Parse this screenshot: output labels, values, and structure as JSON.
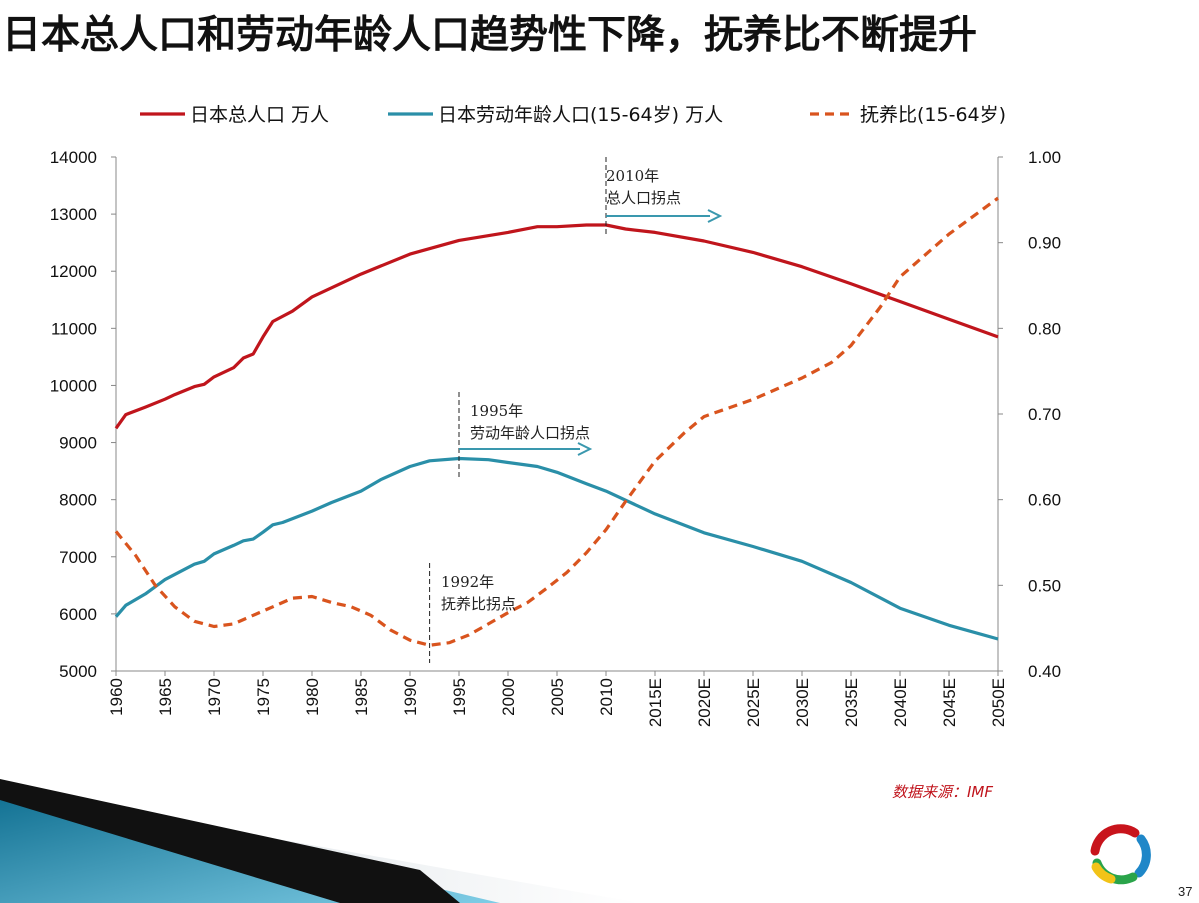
{
  "slide": {
    "title": "日本总人口和劳动年龄人口趋势性下降，抚养比不断提升",
    "source": "数据来源：IMF",
    "page_number": "37"
  },
  "colors": {
    "total_population": "#c0151c",
    "labor_population": "#2a8fa8",
    "dependency_ratio": "#d9541e",
    "arrow": "#3a98ae"
  },
  "chart_data": {
    "type": "line",
    "x_tick_labels": [
      "1960",
      "1965",
      "1970",
      "1975",
      "1980",
      "1985",
      "1990",
      "1995",
      "2000",
      "2005",
      "2010",
      "2015E",
      "2020E",
      "2025E",
      "2030E",
      "2035E",
      "2040E",
      "2045E",
      "2050E"
    ],
    "xlim": [
      1960,
      2050
    ],
    "y_left": {
      "lim": [
        5000,
        14000
      ],
      "ticks": [
        "14000",
        "13000",
        "12000",
        "11000",
        "10000",
        "9000",
        "8000",
        "7000",
        "6000",
        "5000"
      ]
    },
    "y_right": {
      "lim": [
        0.4,
        1.0
      ],
      "ticks": [
        "1.00",
        "0.90",
        "0.80",
        "0.70",
        "0.60",
        "0.50",
        "0.40"
      ]
    },
    "legend": [
      "日本总人口 万人",
      "日本劳动年龄人口(15-64岁) 万人",
      "抚养比(15-64岁)"
    ],
    "series": [
      {
        "name": "日本总人口 万人",
        "axis": "left",
        "style": "solid",
        "points": [
          [
            1960,
            9250
          ],
          [
            1961,
            9490
          ],
          [
            1963,
            9620
          ],
          [
            1965,
            9760
          ],
          [
            1966,
            9840
          ],
          [
            1968,
            9980
          ],
          [
            1969,
            10020
          ],
          [
            1970,
            10150
          ],
          [
            1972,
            10310
          ],
          [
            1973,
            10480
          ],
          [
            1974,
            10550
          ],
          [
            1975,
            10850
          ],
          [
            1976,
            11120
          ],
          [
            1978,
            11300
          ],
          [
            1980,
            11550
          ],
          [
            1985,
            11950
          ],
          [
            1990,
            12300
          ],
          [
            1995,
            12540
          ],
          [
            2000,
            12680
          ],
          [
            2003,
            12780
          ],
          [
            2005,
            12780
          ],
          [
            2008,
            12810
          ],
          [
            2010,
            12810
          ],
          [
            2012,
            12740
          ],
          [
            2015,
            12680
          ],
          [
            2020,
            12530
          ],
          [
            2025,
            12330
          ],
          [
            2030,
            12080
          ],
          [
            2035,
            11780
          ],
          [
            2040,
            11470
          ],
          [
            2045,
            11160
          ],
          [
            2050,
            10850
          ]
        ]
      },
      {
        "name": "日本劳动年龄人口(15-64岁) 万人",
        "axis": "left",
        "style": "solid",
        "points": [
          [
            1960,
            5950
          ],
          [
            1961,
            6150
          ],
          [
            1963,
            6350
          ],
          [
            1965,
            6600
          ],
          [
            1967,
            6780
          ],
          [
            1968,
            6870
          ],
          [
            1969,
            6920
          ],
          [
            1970,
            7050
          ],
          [
            1972,
            7200
          ],
          [
            1973,
            7280
          ],
          [
            1974,
            7310
          ],
          [
            1975,
            7430
          ],
          [
            1976,
            7560
          ],
          [
            1977,
            7600
          ],
          [
            1980,
            7800
          ],
          [
            1982,
            7950
          ],
          [
            1985,
            8150
          ],
          [
            1987,
            8350
          ],
          [
            1990,
            8580
          ],
          [
            1992,
            8680
          ],
          [
            1995,
            8720
          ],
          [
            1998,
            8700
          ],
          [
            2000,
            8650
          ],
          [
            2003,
            8580
          ],
          [
            2005,
            8480
          ],
          [
            2008,
            8280
          ],
          [
            2010,
            8150
          ],
          [
            2015,
            7750
          ],
          [
            2020,
            7420
          ],
          [
            2025,
            7180
          ],
          [
            2030,
            6920
          ],
          [
            2035,
            6550
          ],
          [
            2040,
            6100
          ],
          [
            2045,
            5800
          ],
          [
            2050,
            5560
          ]
        ]
      },
      {
        "name": "抚养比(15-64岁)",
        "axis": "right",
        "style": "dashed",
        "points": [
          [
            1960,
            0.563
          ],
          [
            1962,
            0.535
          ],
          [
            1964,
            0.5
          ],
          [
            1966,
            0.475
          ],
          [
            1968,
            0.458
          ],
          [
            1970,
            0.452
          ],
          [
            1972,
            0.455
          ],
          [
            1974,
            0.465
          ],
          [
            1976,
            0.475
          ],
          [
            1978,
            0.485
          ],
          [
            1980,
            0.487
          ],
          [
            1982,
            0.48
          ],
          [
            1984,
            0.475
          ],
          [
            1986,
            0.465
          ],
          [
            1988,
            0.448
          ],
          [
            1990,
            0.436
          ],
          [
            1992,
            0.43
          ],
          [
            1994,
            0.433
          ],
          [
            1996,
            0.442
          ],
          [
            1998,
            0.455
          ],
          [
            2000,
            0.468
          ],
          [
            2002,
            0.48
          ],
          [
            2004,
            0.497
          ],
          [
            2006,
            0.515
          ],
          [
            2008,
            0.538
          ],
          [
            2010,
            0.565
          ],
          [
            2012,
            0.598
          ],
          [
            2015,
            0.645
          ],
          [
            2018,
            0.678
          ],
          [
            2020,
            0.697
          ],
          [
            2025,
            0.717
          ],
          [
            2030,
            0.742
          ],
          [
            2033,
            0.76
          ],
          [
            2035,
            0.78
          ],
          [
            2038,
            0.825
          ],
          [
            2040,
            0.86
          ],
          [
            2045,
            0.91
          ],
          [
            2050,
            0.952
          ]
        ]
      }
    ],
    "annotations": [
      {
        "year": 2010,
        "line1": "2010年",
        "line2": "总人口拐点"
      },
      {
        "year": 1995,
        "line1": "1995年",
        "line2": "劳动年龄人口拐点"
      },
      {
        "year": 1992,
        "line1": "1992年",
        "line2": "抚养比拐点"
      }
    ]
  }
}
